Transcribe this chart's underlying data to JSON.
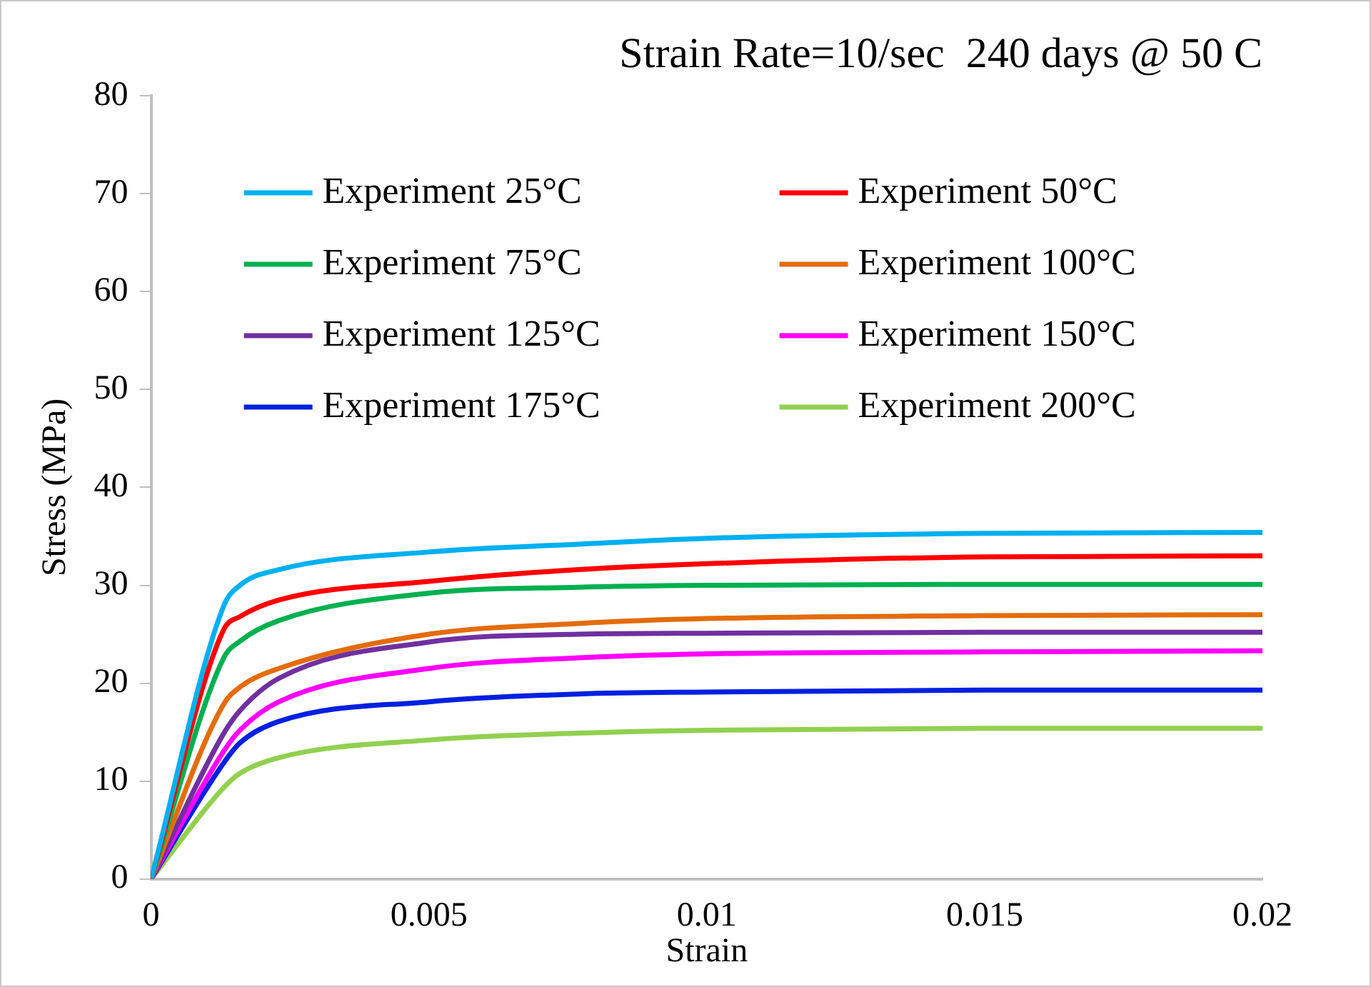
{
  "chart_data": {
    "type": "line",
    "title": "Strain Rate=10/sec  240 days @ 50 C",
    "xlabel": "Strain",
    "ylabel": "Stress (MPa)",
    "x": [
      0,
      0.0013,
      0.0016,
      0.0023,
      0.005,
      0.0077,
      0.01,
      0.015,
      0.02
    ],
    "series": [
      {
        "name": "Experiment 25°C",
        "color": "#00b0f0",
        "values": [
          0,
          27.8,
          30.0,
          31.6,
          33.4,
          34.2,
          34.8,
          35.3,
          35.4
        ]
      },
      {
        "name": "Experiment 50°C",
        "color": "#ff0000",
        "values": [
          0,
          25.4,
          26.8,
          28.5,
          30.4,
          31.6,
          32.2,
          32.9,
          33.0
        ]
      },
      {
        "name": "Experiment 75°C",
        "color": "#00b050",
        "values": [
          0,
          22.5,
          24.3,
          26.4,
          29.2,
          29.8,
          30.0,
          30.1,
          30.1
        ]
      },
      {
        "name": "Experiment 100°C",
        "color": "#e46c0a",
        "values": [
          0,
          17.8,
          19.6,
          21.5,
          25.0,
          26.1,
          26.6,
          26.9,
          27.0
        ]
      },
      {
        "name": "Experiment 125°C",
        "color": "#7030a0",
        "values": [
          0,
          14.8,
          17.2,
          20.5,
          24.2,
          25.0,
          25.1,
          25.2,
          25.2
        ]
      },
      {
        "name": "Experiment 150°C",
        "color": "#ff00ff",
        "values": [
          0,
          13.0,
          15.2,
          18.1,
          21.5,
          22.6,
          23.0,
          23.2,
          23.3
        ]
      },
      {
        "name": "Experiment 175°C",
        "color": "#0020e0",
        "values": [
          0,
          11.8,
          13.9,
          16.1,
          18.1,
          18.9,
          19.1,
          19.3,
          19.3
        ]
      },
      {
        "name": "Experiment 200°C",
        "color": "#92d050",
        "values": [
          0,
          9.3,
          10.8,
          12.4,
          14.2,
          14.9,
          15.2,
          15.4,
          15.4
        ]
      }
    ],
    "xlim": [
      0,
      0.02
    ],
    "xticks": [
      0,
      0.005,
      0.01,
      0.015,
      0.02
    ],
    "ylim": [
      0,
      80
    ],
    "yticks": [
      0,
      10,
      20,
      30,
      40,
      50,
      60,
      70,
      80
    ],
    "grid": false,
    "legend": "top",
    "marker": "none",
    "line_style": "solid"
  }
}
